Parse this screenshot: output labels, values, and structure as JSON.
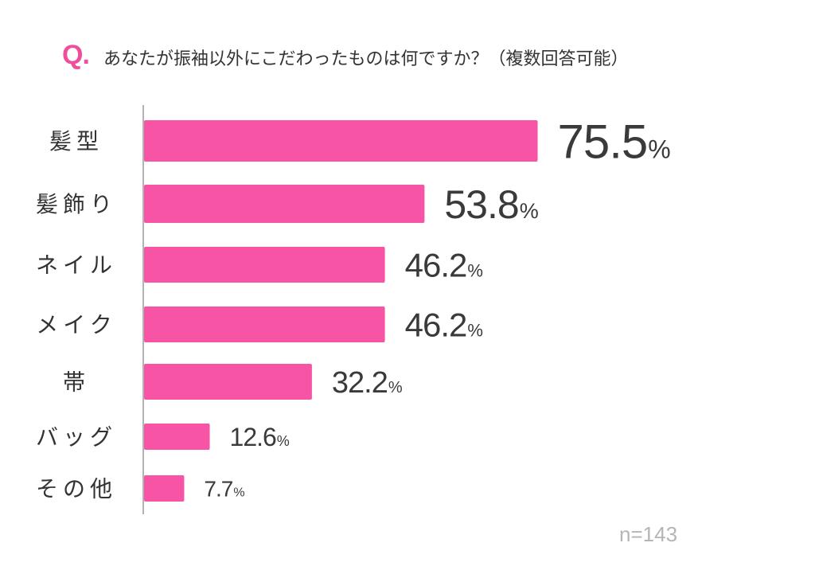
{
  "question": {
    "mark": "Q.",
    "text": "あなたが振袖以外にこだわったものは何ですか？（複数回答可能）"
  },
  "sample_size": "n=143",
  "colors": {
    "bar": "#f754a5",
    "axis": "#999999",
    "label": "#333333",
    "value": "#3a3a3a"
  },
  "chart_data": {
    "type": "bar",
    "orientation": "horizontal",
    "categories": [
      "髪型",
      "髪飾り",
      "ネイル",
      "メイク",
      "帯",
      "バッグ",
      "その他"
    ],
    "values": [
      75.5,
      53.8,
      46.2,
      46.2,
      32.2,
      12.6,
      7.7
    ],
    "value_labels": [
      "75.5",
      "53.8",
      "46.2",
      "46.2",
      "32.2",
      "12.6",
      "7.7"
    ],
    "unit": "%",
    "xlim": [
      0,
      100
    ],
    "grid": false
  }
}
